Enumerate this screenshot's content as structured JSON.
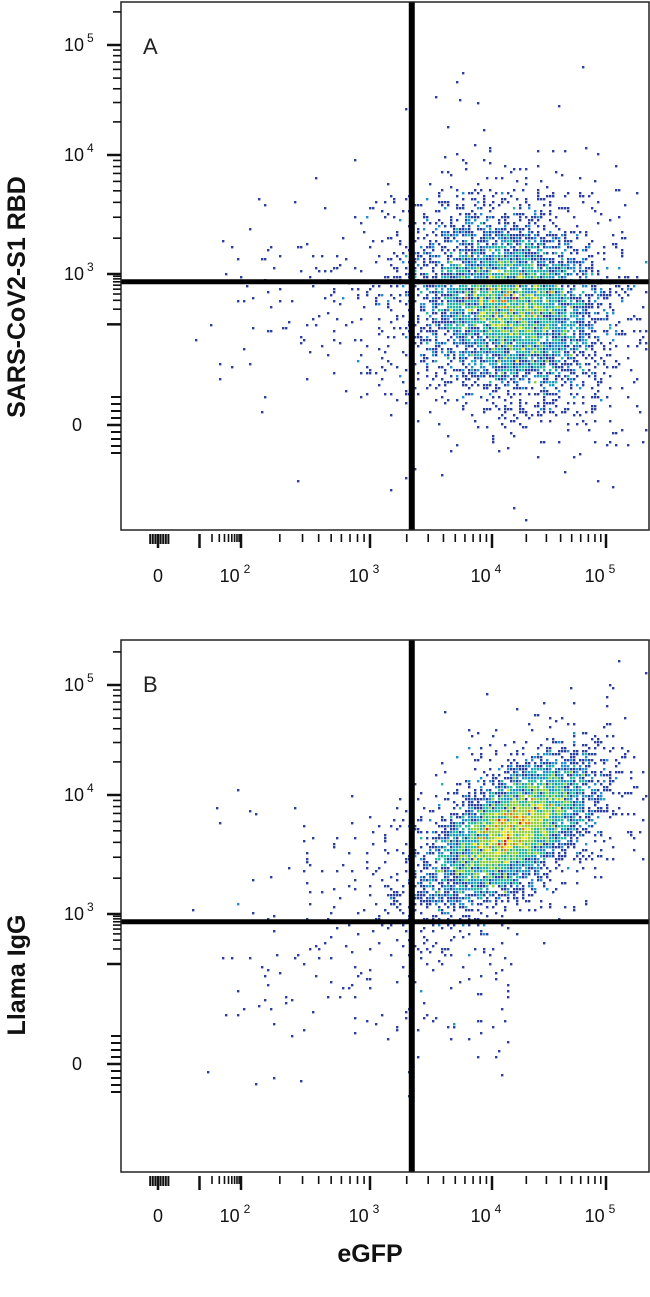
{
  "chart_data": [
    {
      "type": "scatter",
      "panel_label": "A",
      "ylabel": "SARS-CoV2-S1 RBD",
      "xlabel": "",
      "x_scale": "biexponential",
      "y_scale": "biexponential",
      "x_ticks": [
        {
          "value": 0,
          "base": "0",
          "exp": ""
        },
        {
          "value": 100,
          "base": "10",
          "exp": "2"
        },
        {
          "value": 1000,
          "base": "10",
          "exp": "3"
        },
        {
          "value": 10000,
          "base": "10",
          "exp": "4"
        },
        {
          "value": 100000,
          "base": "10",
          "exp": "5"
        }
      ],
      "y_ticks": [
        {
          "value": 0,
          "base": "0",
          "exp": ""
        },
        {
          "value": 1000,
          "base": "10",
          "exp": "3"
        },
        {
          "value": 10000,
          "base": "10",
          "exp": "4"
        },
        {
          "value": 100000,
          "base": "10",
          "exp": "5"
        }
      ],
      "quadrant_gate": {
        "x": 2200,
        "y": 700
      },
      "population_center": {
        "x": 15000,
        "y": 230
      },
      "colormap": [
        "#2b3fa0",
        "#1f8fd0",
        "#22b8a0",
        "#8fd03a",
        "#f0e020",
        "#f07a10",
        "#d81e1e"
      ]
    },
    {
      "type": "scatter",
      "panel_label": "B",
      "ylabel": "Llama IgG",
      "xlabel": "eGFP",
      "x_scale": "biexponential",
      "y_scale": "biexponential",
      "x_ticks": [
        {
          "value": 0,
          "base": "0",
          "exp": ""
        },
        {
          "value": 100,
          "base": "10",
          "exp": "2"
        },
        {
          "value": 1000,
          "base": "10",
          "exp": "3"
        },
        {
          "value": 10000,
          "base": "10",
          "exp": "4"
        },
        {
          "value": 100000,
          "base": "10",
          "exp": "5"
        }
      ],
      "y_ticks": [
        {
          "value": 0,
          "base": "0",
          "exp": ""
        },
        {
          "value": 1000,
          "base": "10",
          "exp": "3"
        },
        {
          "value": 10000,
          "base": "10",
          "exp": "4"
        },
        {
          "value": 100000,
          "base": "10",
          "exp": "5"
        }
      ],
      "quadrant_gate": {
        "x": 2200,
        "y": 700
      },
      "population_center": {
        "x": 15000,
        "y": 5000
      },
      "colormap": [
        "#2b3fa0",
        "#1f8fd0",
        "#22b8a0",
        "#8fd03a",
        "#f0e020",
        "#f07a10",
        "#d81e1e"
      ]
    }
  ]
}
